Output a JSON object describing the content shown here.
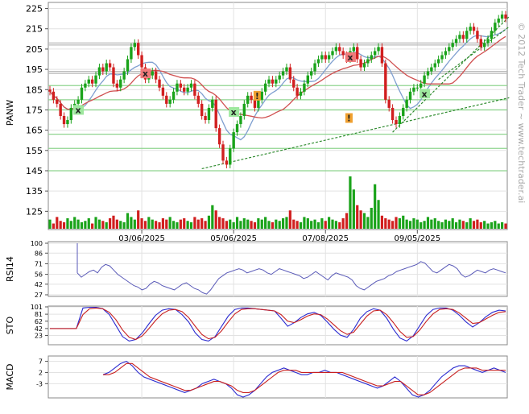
{
  "watermark": "© 2012 Tech Trader ~ www.techtrader.ai",
  "colors": {
    "up": "#1aa31a",
    "down": "#d11f1f",
    "ma_fast": "#7f9fd0",
    "ma_slow": "#d05050",
    "trend": "#2e8b2e",
    "support": "#8fd48f",
    "resistance": "#b8b8b8",
    "rsi": "#5a5ab8",
    "osc_a": "#2a2ad0",
    "osc_b": "#c82020",
    "grid": "#e2e2e2",
    "signal_x_green": "#9ee89e",
    "signal_x_red": "#f07a7a",
    "signal_excl": "#f0a030"
  },
  "chart_data": [
    {
      "panel": "price",
      "type": "candlestick",
      "ylabel": "PANW",
      "y_ticks": [
        225,
        215,
        205,
        195,
        185,
        175,
        165,
        155,
        145,
        135,
        125
      ],
      "ylim": [
        116,
        228
      ],
      "x_tick_labels": [
        "03/06/2025",
        "05/06/2025",
        "07/08/2025",
        "09/05/2025"
      ],
      "grid": true,
      "series": [
        {
          "name": "",
          "type": "ohlc_close",
          "close": [
            184,
            180,
            178,
            172,
            168,
            170,
            176,
            178,
            180,
            186,
            188,
            190,
            188,
            192,
            196,
            194,
            198,
            196,
            188,
            186,
            190,
            194,
            200,
            206,
            208,
            202,
            196,
            190,
            192,
            194,
            190,
            186,
            182,
            178,
            180,
            184,
            188,
            186,
            184,
            186,
            188,
            182,
            178,
            172,
            170,
            176,
            180,
            166,
            158,
            150,
            148,
            156,
            164,
            168,
            172,
            178,
            182,
            180,
            176,
            180,
            184,
            188,
            190,
            188,
            190,
            192,
            194,
            196,
            190,
            186,
            182,
            184,
            188,
            192,
            194,
            198,
            200,
            202,
            200,
            202,
            204,
            206,
            204,
            202,
            200,
            204,
            206,
            200,
            196,
            198,
            200,
            202,
            204,
            206,
            198,
            180,
            176,
            170,
            168,
            172,
            176,
            180,
            184,
            186,
            186,
            188,
            192,
            194,
            196,
            198,
            200,
            202,
            204,
            206,
            208,
            210,
            212,
            210,
            214,
            216,
            214,
            210,
            206,
            208,
            210,
            214,
            218,
            220,
            222,
            220
          ]
        }
      ],
      "horizontal_levels": [
        208,
        207,
        194,
        193,
        187,
        180,
        175,
        163,
        156,
        145
      ],
      "trend_lines": [
        {
          "x": [
            43,
            130
          ],
          "y": [
            146,
            181
          ]
        },
        {
          "x": [
            97,
            130
          ],
          "y": [
            164,
            221
          ]
        },
        {
          "x": [
            110,
            130
          ],
          "y": [
            190,
            216
          ]
        }
      ],
      "signals": [
        {
          "x": 8,
          "y": 175,
          "label": "x",
          "kind": "green"
        },
        {
          "x": 27,
          "y": 193,
          "label": "x",
          "kind": "red"
        },
        {
          "x": 52,
          "y": 174,
          "label": "x",
          "kind": "green"
        },
        {
          "x": 59,
          "y": 182,
          "label": "!",
          "kind": "orange"
        },
        {
          "x": 85,
          "y": 201,
          "label": "x",
          "kind": "red"
        },
        {
          "x": 85,
          "y": 171,
          "label": "!",
          "kind": "orange"
        },
        {
          "x": 106,
          "y": 183,
          "label": "x",
          "kind": "green"
        }
      ]
    },
    {
      "panel": "volume",
      "type": "bar",
      "values": [
        7,
        4,
        9,
        6,
        5,
        8,
        6,
        9,
        7,
        5,
        6,
        8,
        4,
        9,
        7,
        6,
        5,
        8,
        10,
        7,
        6,
        5,
        12,
        9,
        7,
        14,
        8,
        6,
        9,
        7,
        6,
        5,
        8,
        7,
        9,
        6,
        5,
        7,
        8,
        6,
        5,
        9,
        7,
        8,
        6,
        10,
        18,
        14,
        9,
        8,
        6,
        7,
        5,
        9,
        6,
        8,
        7,
        6,
        5,
        8,
        7,
        9,
        6,
        5,
        7,
        6,
        8,
        9,
        14,
        7,
        6,
        5,
        9,
        8,
        6,
        7,
        5,
        8,
        6,
        9,
        7,
        6,
        5,
        8,
        12,
        40,
        30,
        18,
        14,
        12,
        9,
        16,
        34,
        22,
        10,
        8,
        7,
        6,
        9,
        8,
        10,
        7,
        6,
        8,
        7,
        5,
        6,
        9,
        7,
        8,
        6,
        5,
        7,
        6,
        8,
        5,
        7,
        6,
        5,
        8,
        6,
        7,
        5,
        6,
        4,
        5,
        6,
        4,
        5,
        4
      ]
    },
    {
      "panel": "rsi",
      "type": "line",
      "ylabel": "RSI14",
      "y_ticks": [
        100,
        86,
        71,
        56,
        42,
        27
      ],
      "ylim": [
        27,
        100
      ],
      "series": [
        {
          "name": "",
          "values": [
            58,
            52,
            56,
            60,
            62,
            58,
            66,
            70,
            68,
            62,
            56,
            52,
            48,
            44,
            40,
            38,
            34,
            36,
            42,
            46,
            44,
            40,
            38,
            36,
            34,
            38,
            42,
            44,
            40,
            36,
            34,
            30,
            28,
            34,
            42,
            50,
            54,
            58,
            60,
            62,
            64,
            62,
            58,
            60,
            62,
            64,
            62,
            58,
            56,
            60,
            64,
            62,
            60,
            58,
            56,
            54,
            50,
            52,
            56,
            60,
            56,
            52,
            48,
            54,
            58,
            56,
            54,
            52,
            48,
            40,
            36,
            34,
            38,
            42,
            46,
            48,
            50,
            54,
            56,
            60,
            62,
            64,
            66,
            68,
            70,
            74,
            72,
            66,
            60,
            58,
            62,
            66,
            70,
            68,
            64,
            56,
            52,
            54,
            58,
            62,
            60,
            58,
            62,
            64,
            62,
            60,
            58
          ]
        }
      ]
    },
    {
      "panel": "stochastic",
      "type": "line",
      "ylabel": "STO",
      "y_ticks": [
        101,
        81,
        62,
        42,
        23
      ],
      "ylim": [
        0,
        101
      ],
      "series": [
        {
          "name": "",
          "values": [
            42,
            42,
            42,
            42,
            42,
            98,
            100,
            100,
            96,
            80,
            50,
            20,
            8,
            12,
            30,
            55,
            78,
            92,
            96,
            94,
            80,
            60,
            30,
            12,
            8,
            20,
            48,
            76,
            94,
            98,
            98,
            96,
            94,
            92,
            90,
            70,
            48,
            58,
            72,
            82,
            86,
            78,
            60,
            40,
            24,
            18,
            40,
            70,
            88,
            96,
            92,
            70,
            40,
            16,
            8,
            22,
            50,
            78,
            94,
            98,
            98,
            92,
            78,
            60,
            46,
            58,
            74,
            86,
            92,
            90
          ]
        },
        {
          "name": "",
          "values": [
            42,
            42,
            42,
            42,
            42,
            80,
            96,
            98,
            96,
            86,
            66,
            38,
            18,
            12,
            22,
            42,
            64,
            82,
            92,
            94,
            88,
            72,
            48,
            26,
            14,
            18,
            36,
            60,
            82,
            94,
            96,
            96,
            94,
            92,
            90,
            80,
            62,
            58,
            66,
            76,
            82,
            80,
            68,
            52,
            36,
            26,
            32,
            54,
            76,
            90,
            92,
            80,
            58,
            34,
            18,
            20,
            38,
            62,
            82,
            94,
            96,
            94,
            84,
            70,
            56,
            58,
            68,
            78,
            86,
            88
          ]
        }
      ]
    },
    {
      "panel": "macd",
      "type": "line",
      "ylabel": "MACD",
      "y_ticks": [
        7,
        2,
        -3
      ],
      "ylim": [
        -9,
        9
      ],
      "series": [
        {
          "name": "",
          "values": [
            1,
            2,
            4,
            6,
            7,
            5,
            2,
            0,
            -1,
            -2,
            -3,
            -4,
            -5,
            -6,
            -7,
            -6,
            -5,
            -3,
            -2,
            -1,
            -2,
            -3,
            -5,
            -8,
            -9,
            -8,
            -6,
            -3,
            0,
            2,
            3,
            4,
            3,
            2,
            1,
            1,
            2,
            2,
            3,
            2,
            2,
            1,
            0,
            -1,
            -2,
            -3,
            -4,
            -5,
            -4,
            -2,
            0,
            -2,
            -5,
            -8,
            -9,
            -8,
            -6,
            -3,
            0,
            2,
            4,
            5,
            5,
            4,
            3,
            2,
            3,
            4,
            3,
            2
          ]
        },
        {
          "name": "",
          "values": [
            1,
            1,
            2,
            4,
            6,
            6,
            4,
            2,
            0,
            -1,
            -2,
            -3,
            -4,
            -5,
            -6,
            -6,
            -5,
            -4,
            -3,
            -2,
            -2,
            -3,
            -4,
            -6,
            -7,
            -7,
            -6,
            -4,
            -2,
            0,
            2,
            3,
            3,
            3,
            2,
            2,
            2,
            2,
            2,
            2,
            2,
            2,
            1,
            0,
            -1,
            -2,
            -3,
            -4,
            -4,
            -3,
            -2,
            -2,
            -4,
            -6,
            -8,
            -8,
            -7,
            -5,
            -3,
            -1,
            1,
            3,
            4,
            4,
            4,
            3,
            3,
            3,
            3,
            3
          ]
        }
      ]
    }
  ]
}
